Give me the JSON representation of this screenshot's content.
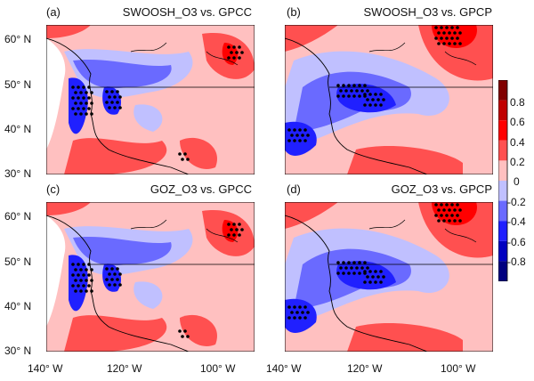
{
  "panels": [
    {
      "tag": "(a)",
      "title": "SWOOSH_O3 vs. GPCC"
    },
    {
      "tag": "(b)",
      "title": "SWOOSH_O3 vs. GPCP"
    },
    {
      "tag": "(c)",
      "title": "GOZ_O3 vs. GPCC"
    },
    {
      "tag": "(d)",
      "title": "GOZ_O3 vs. GPCP"
    }
  ],
  "lat_ticks": [
    "60° N",
    "50° N",
    "40° N",
    "30° N"
  ],
  "lon_ticks": [
    "140° W",
    "120° W",
    "100° W"
  ],
  "colorbar": {
    "labels": [
      "0.8",
      "0.6",
      "0.4",
      "0.2",
      "0",
      "-0.2",
      "-0.4",
      "-0.6",
      "-0.8"
    ],
    "colors": [
      "#800000",
      "#c00000",
      "#ff0000",
      "#ff5050",
      "#ffc0c0",
      "#c0c0ff",
      "#6a6aff",
      "#2020ff",
      "#0000c0",
      "#000080"
    ]
  }
}
